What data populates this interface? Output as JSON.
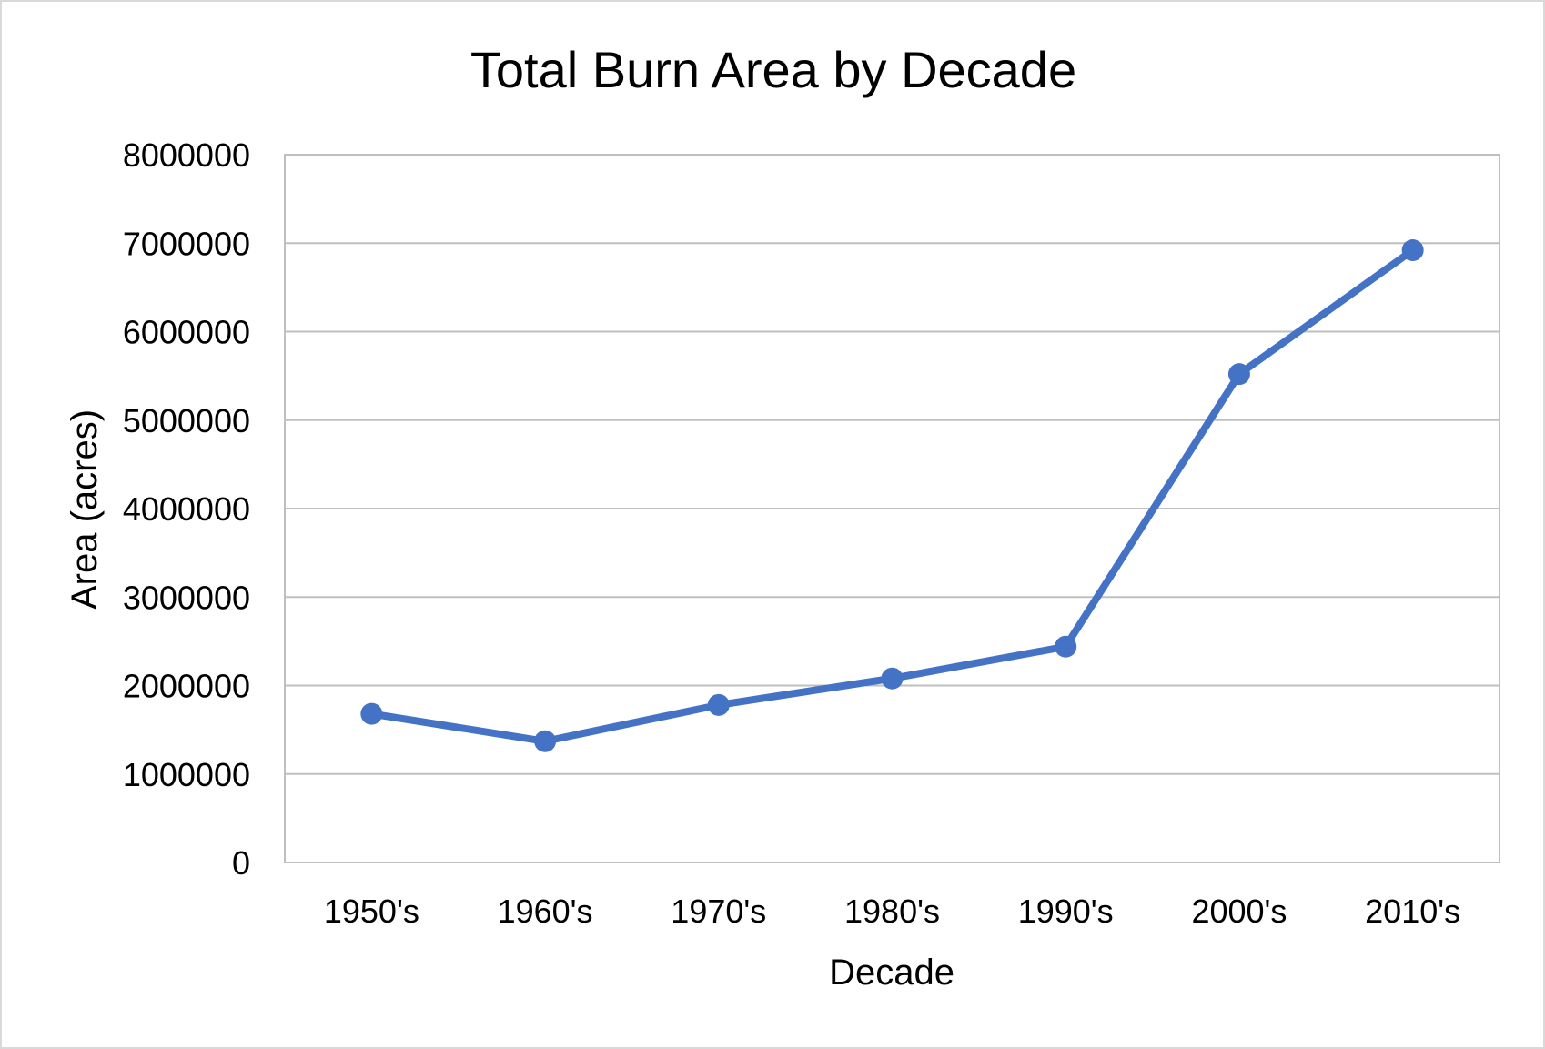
{
  "chart_data": {
    "type": "line",
    "title": "Total Burn Area by Decade",
    "xlabel": "Decade",
    "ylabel": "Area (acres)",
    "categories": [
      "1950's",
      "1960's",
      "1970's",
      "1980's",
      "1990's",
      "2000's",
      "2010's"
    ],
    "series": [
      {
        "values": [
          1680000,
          1370000,
          1780000,
          2080000,
          2440000,
          5520000,
          6920000
        ],
        "color": "#4472c4"
      }
    ],
    "ylim": [
      0,
      8000000
    ],
    "yticks": [
      "0",
      "1000000",
      "2000000",
      "3000000",
      "4000000",
      "5000000",
      "6000000",
      "7000000",
      "8000000"
    ],
    "grid": true,
    "legend": "none"
  }
}
